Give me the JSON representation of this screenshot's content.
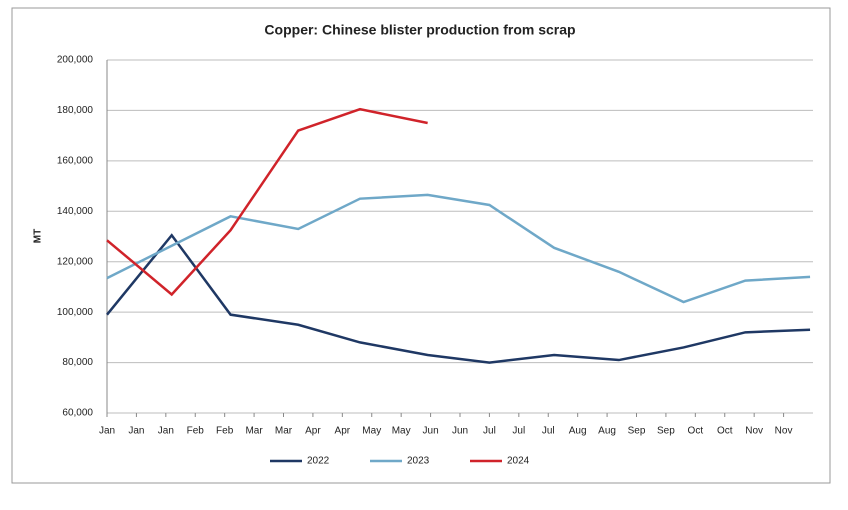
{
  "chart_data": {
    "type": "line",
    "title": "Copper: Chinese blister production from scrap",
    "y_label": "MT",
    "xlim": [
      0,
      24
    ],
    "xticks": [
      {
        "value": 0,
        "label": "Jan"
      },
      {
        "value": 1,
        "label": "Jan"
      },
      {
        "value": 2,
        "label": "Jan"
      },
      {
        "value": 3,
        "label": "Feb"
      },
      {
        "value": 4,
        "label": "Feb"
      },
      {
        "value": 5,
        "label": "Mar"
      },
      {
        "value": 6,
        "label": "Mar"
      },
      {
        "value": 7,
        "label": "Apr"
      },
      {
        "value": 8,
        "label": "Apr"
      },
      {
        "value": 9,
        "label": "May"
      },
      {
        "value": 10,
        "label": "May"
      },
      {
        "value": 11,
        "label": "Jun"
      },
      {
        "value": 12,
        "label": "Jun"
      },
      {
        "value": 13,
        "label": "Jul"
      },
      {
        "value": 14,
        "label": "Jul"
      },
      {
        "value": 15,
        "label": "Jul"
      },
      {
        "value": 16,
        "label": "Aug"
      },
      {
        "value": 17,
        "label": "Aug"
      },
      {
        "value": 18,
        "label": "Sep"
      },
      {
        "value": 19,
        "label": "Sep"
      },
      {
        "value": 20,
        "label": "Oct"
      },
      {
        "value": 21,
        "label": "Oct"
      },
      {
        "value": 22,
        "label": "Nov"
      },
      {
        "value": 23,
        "label": "Nov"
      }
    ],
    "ylim": [
      60000,
      200000
    ],
    "yticks": [
      {
        "value": 60000,
        "label": "60,000"
      },
      {
        "value": 80000,
        "label": "80,000"
      },
      {
        "value": 100000,
        "label": "100,000"
      },
      {
        "value": 120000,
        "label": "120,000"
      },
      {
        "value": 140000,
        "label": "140,000"
      },
      {
        "value": 160000,
        "label": "160,000"
      },
      {
        "value": 180000,
        "label": "180,000"
      },
      {
        "value": 200000,
        "label": "200,000"
      }
    ],
    "grid": true,
    "legend": "bottom",
    "series": [
      {
        "name": "2022",
        "color": "#1f3864",
        "x": [
          0,
          2.2,
          4.2,
          6.5,
          8.6,
          10.9,
          13,
          15.2,
          17.4,
          19.6,
          21.7,
          23.9
        ],
        "values": [
          99000,
          130500,
          99000,
          95000,
          88000,
          83000,
          80000,
          83000,
          81000,
          86000,
          92000,
          93000
        ]
      },
      {
        "name": "2023",
        "color": "#6fa8c8",
        "x": [
          0,
          4.2,
          6.5,
          8.6,
          10.9,
          13,
          15.2,
          17.4,
          19.6,
          21.7,
          23.9
        ],
        "values": [
          113500,
          138000,
          133000,
          145000,
          146500,
          142500,
          125500,
          116000,
          104000,
          112500,
          114000
        ]
      },
      {
        "name": "2024",
        "color": "#d0232a",
        "x": [
          0,
          2.2,
          4.2,
          6.5,
          8.6,
          10.9
        ],
        "values": [
          128500,
          107000,
          132500,
          172000,
          180500,
          175000
        ]
      }
    ]
  }
}
